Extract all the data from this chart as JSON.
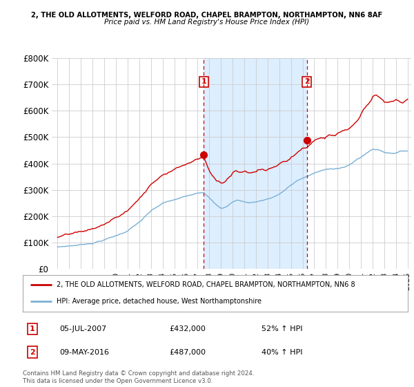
{
  "title_line1": "2, THE OLD ALLOTMENTS, WELFORD ROAD, CHAPEL BRAMPTON, NORTHAMPTON, NN6 8AF",
  "title_line2": "Price paid vs. HM Land Registry's House Price Index (HPI)",
  "ylim": [
    0,
    800000
  ],
  "yticks": [
    0,
    100000,
    200000,
    300000,
    400000,
    500000,
    600000,
    700000,
    800000
  ],
  "ytick_labels": [
    "£0",
    "£100K",
    "£200K",
    "£300K",
    "£400K",
    "£500K",
    "£600K",
    "£700K",
    "£800K"
  ],
  "legend_line1": "2, THE OLD ALLOTMENTS, WELFORD ROAD, CHAPEL BRAMPTON, NORTHAMPTON, NN6 8",
  "legend_line2": "HPI: Average price, detached house, West Northamptonshire",
  "transaction1_label": "1",
  "transaction1_date": "05-JUL-2007",
  "transaction1_price": "£432,000",
  "transaction1_hpi": "52% ↑ HPI",
  "transaction2_label": "2",
  "transaction2_date": "09-MAY-2016",
  "transaction2_price": "£487,000",
  "transaction2_hpi": "40% ↑ HPI",
  "footer": "Contains HM Land Registry data © Crown copyright and database right 2024.\nThis data is licensed under the Open Government Licence v3.0.",
  "red_color": "#cc0000",
  "blue_color": "#7ab0d4",
  "background_color": "#ffffff",
  "plot_bg_color": "#ffffff",
  "grid_color": "#cccccc",
  "highlight_color": "#ddeeff",
  "marker1_x": 2007.54,
  "marker1_y": 432000,
  "marker2_x": 2016.36,
  "marker2_y": 487000,
  "vline1_x": 2007.54,
  "vline2_x": 2016.36,
  "xmin": 1995,
  "xmax": 2025
}
